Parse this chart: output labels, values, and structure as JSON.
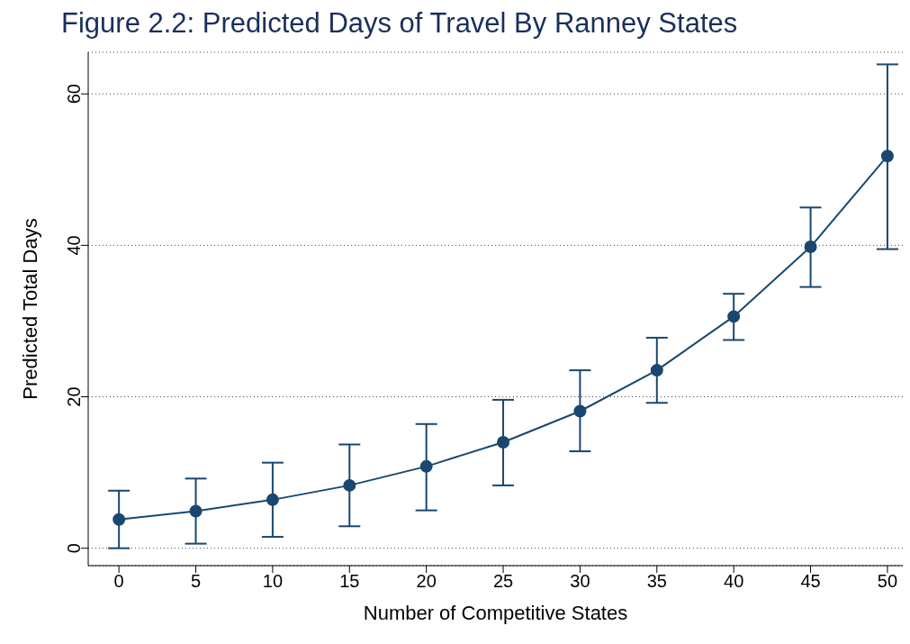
{
  "chart_data": {
    "type": "line",
    "title": "Figure 2.2: Predicted Days of Travel By Ranney States",
    "xlabel": "Number of Competitive States",
    "ylabel": "Predicted Total Days",
    "x": [
      0,
      5,
      10,
      15,
      20,
      25,
      30,
      35,
      40,
      45,
      50
    ],
    "series": [
      {
        "color": "#1a476f",
        "values": [
          3.8,
          4.9,
          6.4,
          8.3,
          10.8,
          14.0,
          18.1,
          23.5,
          30.6,
          39.8,
          51.8
        ],
        "errors": [
          [
            0,
            7.6
          ],
          [
            0.6,
            9.2
          ],
          [
            1.5,
            11.3
          ],
          [
            2.9,
            13.7
          ],
          [
            5.0,
            16.4
          ],
          [
            8.3,
            19.6
          ],
          [
            12.8,
            23.5
          ],
          [
            19.2,
            27.8
          ],
          [
            27.5,
            33.6
          ],
          [
            34.5,
            45.0
          ],
          [
            39.5,
            63.9
          ]
        ]
      }
    ],
    "xlim": [
      -2,
      51
    ],
    "xticks": [
      0,
      5,
      10,
      15,
      20,
      25,
      30,
      35,
      40,
      45,
      50
    ],
    "ylim": [
      -2.3,
      65.5
    ],
    "yticks": [
      0,
      20,
      40,
      60
    ],
    "grid": "y",
    "marker": "circle",
    "line_style": "solid",
    "legend": false
  }
}
